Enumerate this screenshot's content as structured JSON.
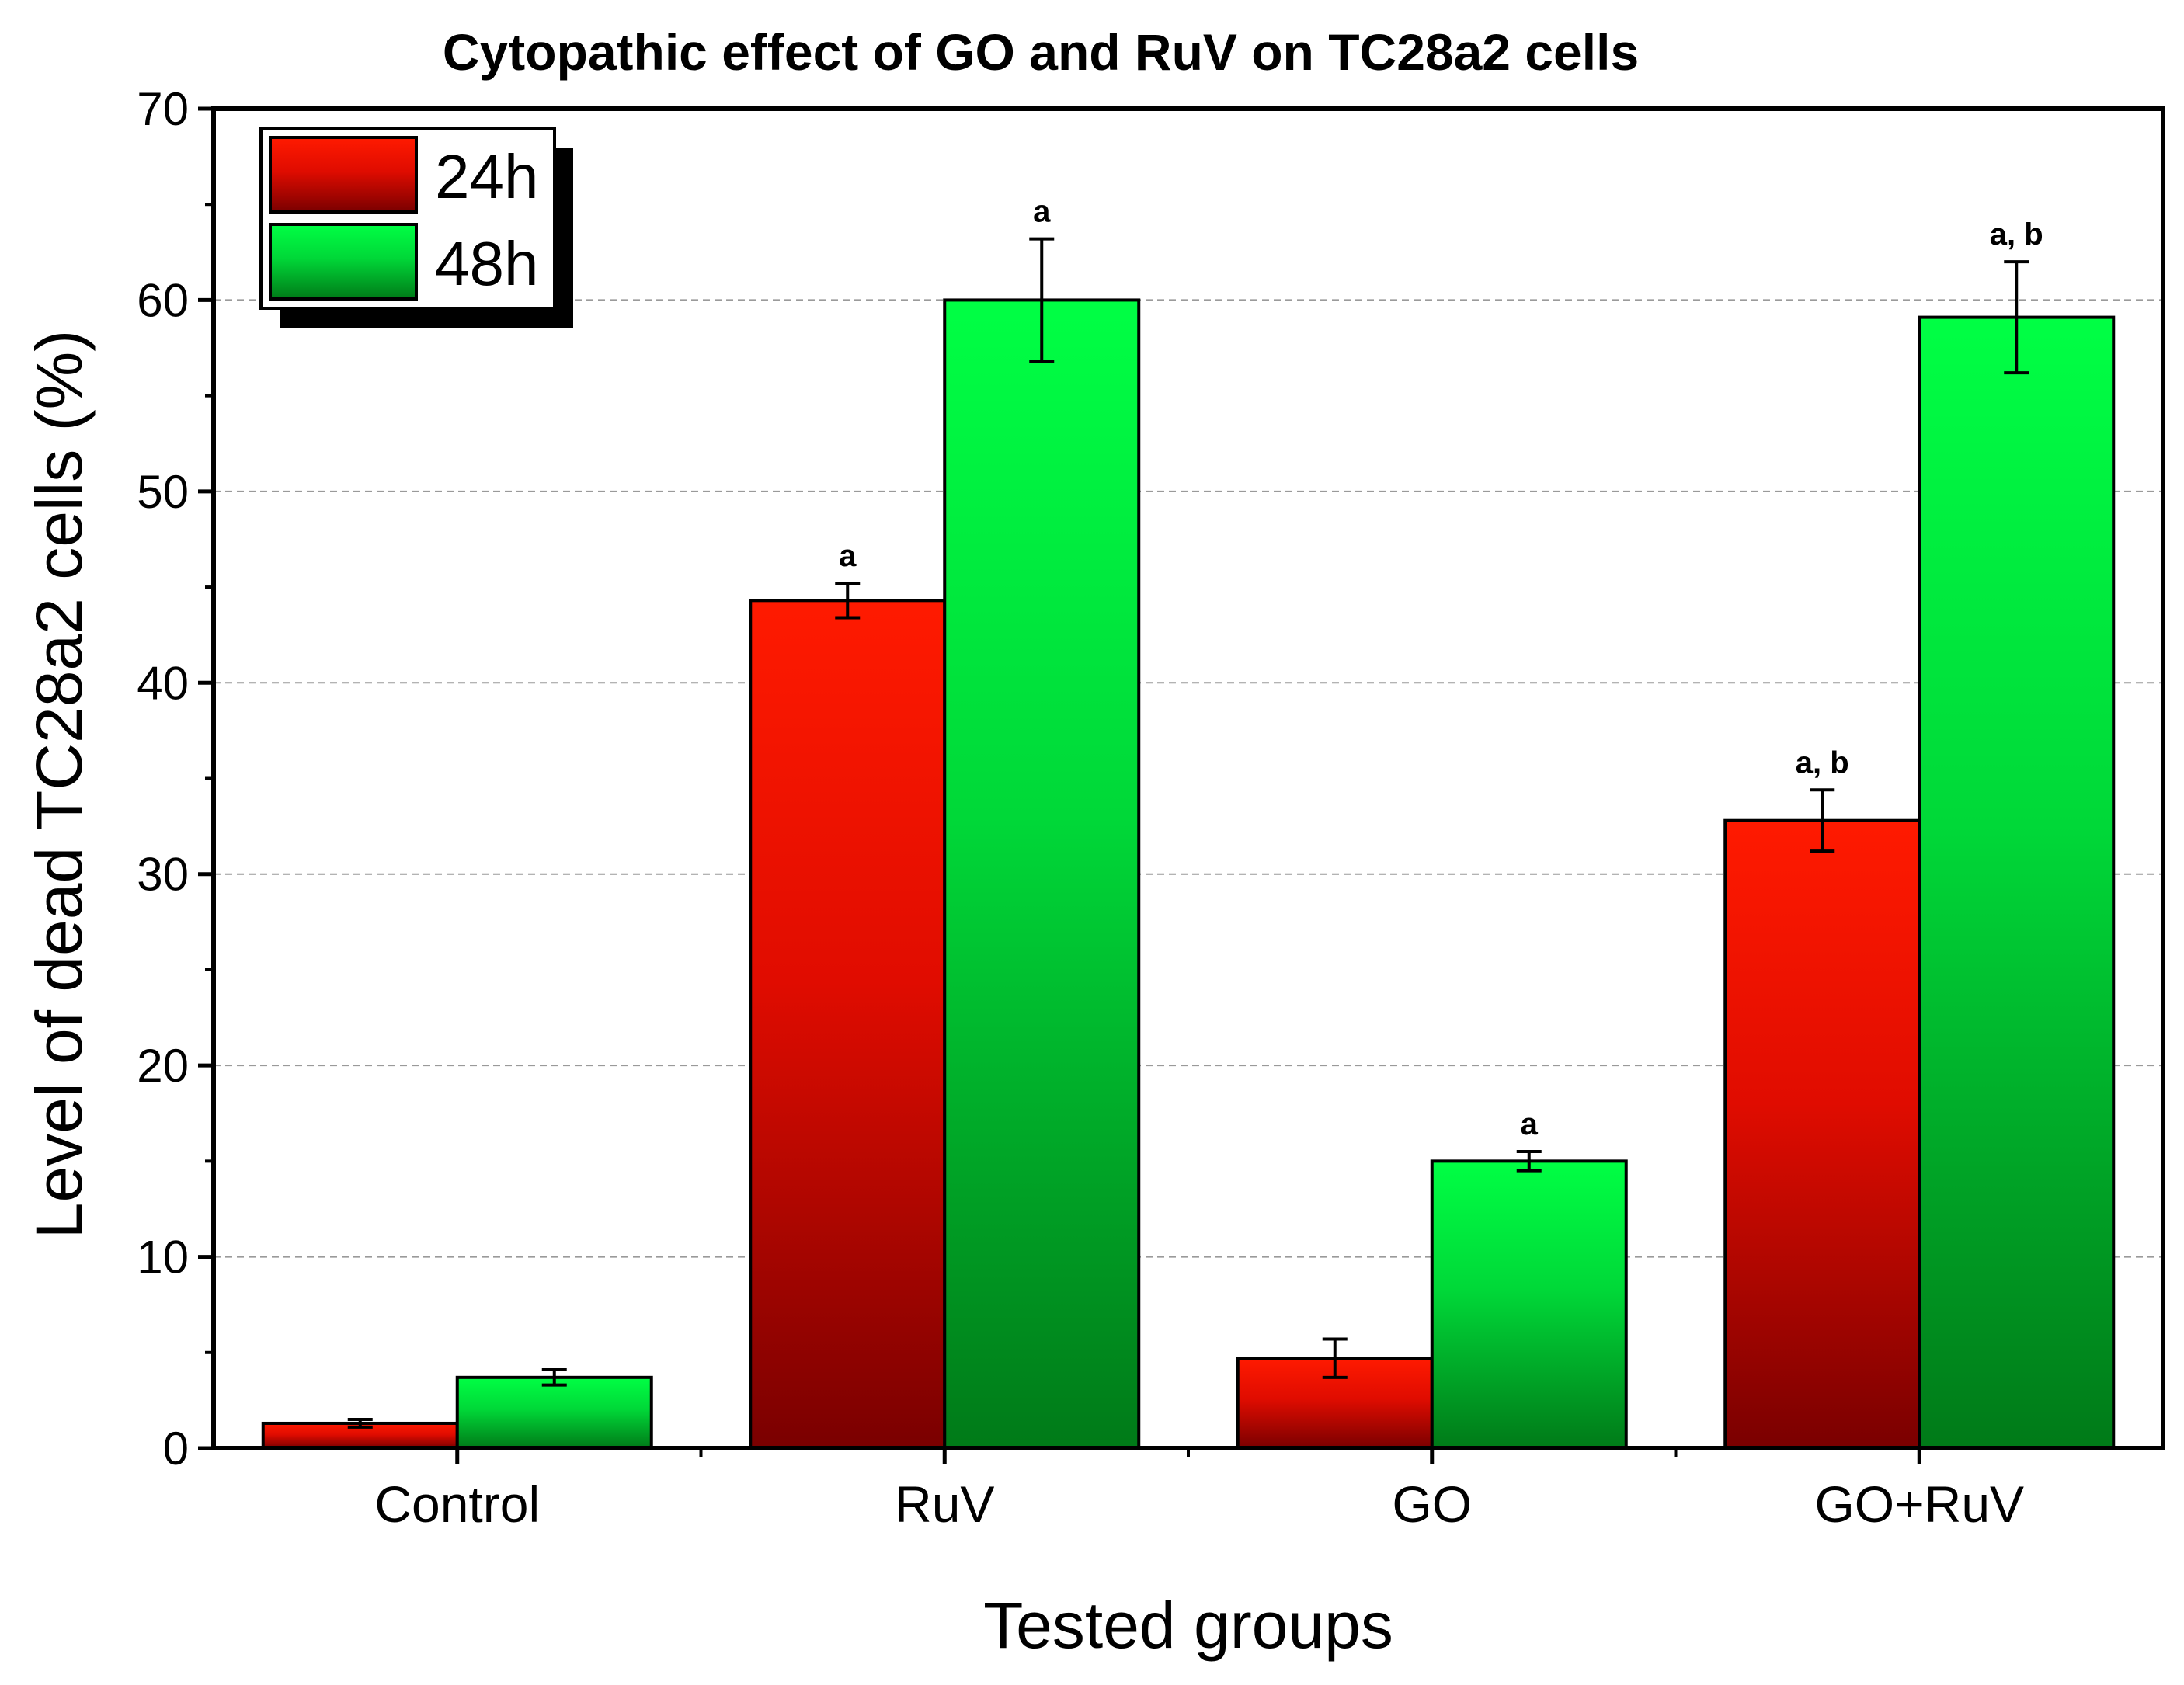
{
  "chart_data": {
    "type": "bar",
    "title": "Cytopathic effect of GO and RuV on TC28a2 cells",
    "xlabel": "Tested groups",
    "ylabel": "Level of dead TC28a2 cells (%)",
    "ylim": [
      0,
      70
    ],
    "yticks": [
      0,
      10,
      20,
      30,
      40,
      50,
      60,
      70
    ],
    "grid": "horizontal dashed",
    "legend_position": "top-left",
    "categories": [
      "Control",
      "RuV",
      "GO",
      "GO+RuV"
    ],
    "series": [
      {
        "name": "24h",
        "color_top": "#ff1a00",
        "color_bottom": "#7a0000",
        "values": [
          1.3,
          44.3,
          4.7,
          32.8
        ],
        "errors": [
          0.2,
          0.9,
          1.0,
          1.6
        ],
        "annotations": [
          "",
          "a",
          "",
          "a, b"
        ]
      },
      {
        "name": "48h",
        "color_top": "#00ff44",
        "color_bottom": "#007a18",
        "values": [
          3.7,
          60.0,
          15.0,
          59.1
        ],
        "errors": [
          0.4,
          3.2,
          0.5,
          2.9
        ],
        "annotations": [
          "",
          "a",
          "a",
          "a, b"
        ]
      }
    ]
  }
}
